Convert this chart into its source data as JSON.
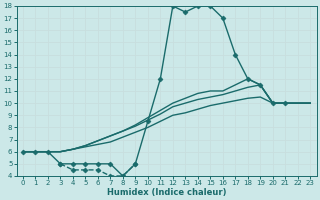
{
  "xlabel": "Humidex (Indice chaleur)",
  "bg_color": "#cce8e8",
  "line_color": "#1a6b6b",
  "grid_color": "#b8d8d8",
  "xlim": [
    -0.5,
    23.5
  ],
  "ylim": [
    4,
    18
  ],
  "xticks": [
    0,
    1,
    2,
    3,
    4,
    5,
    6,
    7,
    8,
    9,
    10,
    11,
    12,
    13,
    14,
    15,
    16,
    17,
    18,
    19,
    20,
    21,
    22,
    23
  ],
  "yticks": [
    4,
    5,
    6,
    7,
    8,
    9,
    10,
    11,
    12,
    13,
    14,
    15,
    16,
    17,
    18
  ],
  "series": [
    {
      "x": [
        0,
        1,
        2,
        3,
        4,
        5,
        6,
        7,
        8,
        9,
        10,
        11,
        12,
        13,
        14,
        15,
        16,
        17,
        18,
        19,
        20,
        21
      ],
      "y": [
        6,
        6,
        6,
        5,
        5,
        5,
        5,
        5,
        4,
        5,
        8.5,
        12,
        18,
        17.5,
        18,
        18,
        17,
        14,
        12,
        11.5,
        10,
        10
      ],
      "marker": "D",
      "markersize": 2.5,
      "linewidth": 1.0,
      "linestyle": "-"
    },
    {
      "x": [
        3,
        4,
        5,
        6,
        7,
        8,
        9
      ],
      "y": [
        5,
        4.5,
        4.5,
        4.5,
        4,
        4,
        5
      ],
      "marker": "D",
      "markersize": 2.5,
      "linewidth": 1.0,
      "linestyle": "--"
    },
    {
      "x": [
        0,
        1,
        2,
        3,
        4,
        5,
        6,
        7,
        8,
        9,
        10,
        11,
        12,
        13,
        14,
        15,
        16,
        17,
        18,
        19,
        20,
        21,
        22,
        23
      ],
      "y": [
        6,
        6,
        6,
        6,
        6.2,
        6.4,
        6.6,
        6.8,
        7.2,
        7.6,
        8.0,
        8.5,
        9.0,
        9.2,
        9.5,
        9.8,
        10.0,
        10.2,
        10.4,
        10.5,
        10.0,
        10.0,
        10.0,
        10.0
      ],
      "marker": null,
      "markersize": 0,
      "linewidth": 1.0,
      "linestyle": "-"
    },
    {
      "x": [
        0,
        1,
        2,
        3,
        4,
        5,
        6,
        7,
        8,
        9,
        10,
        11,
        12,
        13,
        14,
        15,
        16,
        17,
        18,
        19,
        20,
        21,
        22,
        23
      ],
      "y": [
        6,
        6,
        6,
        6,
        6.2,
        6.5,
        6.9,
        7.3,
        7.7,
        8.1,
        8.6,
        9.1,
        9.7,
        10.0,
        10.3,
        10.5,
        10.7,
        11.0,
        11.3,
        11.5,
        10.0,
        10.0,
        10.0,
        10.0
      ],
      "marker": null,
      "markersize": 0,
      "linewidth": 1.0,
      "linestyle": "-"
    },
    {
      "x": [
        0,
        1,
        2,
        3,
        4,
        5,
        6,
        7,
        8,
        9,
        10,
        11,
        12,
        13,
        14,
        15,
        16,
        17,
        18,
        19,
        20,
        21,
        22,
        23
      ],
      "y": [
        6,
        6,
        6,
        6,
        6.2,
        6.5,
        6.9,
        7.3,
        7.7,
        8.2,
        8.8,
        9.4,
        10.0,
        10.4,
        10.8,
        11.0,
        11.0,
        11.5,
        12.0,
        11.5,
        10.0,
        10.0,
        10.0,
        10.0
      ],
      "marker": null,
      "markersize": 0,
      "linewidth": 1.0,
      "linestyle": "-"
    }
  ]
}
